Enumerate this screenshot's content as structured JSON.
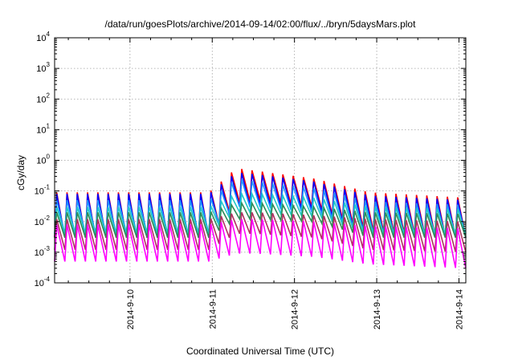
{
  "chart_data": {
    "type": "line",
    "title": "/data/run/goesPlots/archive/2014-09-14/02:00/flux/../bryn/5daysMars.plot",
    "xlabel": "Coordinated Universal Time (UTC)",
    "ylabel": "cGy/day",
    "y_scale": "log",
    "ylim": [
      0.0001,
      10000
    ],
    "y_ticks": [
      {
        "value": 0.0001,
        "base": "10",
        "exp": "-4"
      },
      {
        "value": 0.001,
        "base": "10",
        "exp": "-3"
      },
      {
        "value": 0.01,
        "base": "10",
        "exp": "-2"
      },
      {
        "value": 0.1,
        "base": "10",
        "exp": "-1"
      },
      {
        "value": 1,
        "base": "10",
        "exp": "0"
      },
      {
        "value": 10,
        "base": "10",
        "exp": "1"
      },
      {
        "value": 100,
        "base": "10",
        "exp": "2"
      },
      {
        "value": 1000,
        "base": "10",
        "exp": "3"
      },
      {
        "value": 10000,
        "base": "10",
        "exp": "4"
      }
    ],
    "xlim": [
      "2014-09-09 02:00",
      "2014-09-14 02:00"
    ],
    "x_ticks": [
      "2014-9-10",
      "2014-9-11",
      "2014-9-12",
      "2014-9-13",
      "2014-9-14"
    ],
    "grid": true,
    "legend": "none",
    "sawtooth_period_hours": 3,
    "sawtooth_peak_offset_hours": 0.6,
    "series": [
      {
        "color": "#ff0000",
        "points": [
          [
            "2014-09-09 02:00",
            0.09,
            0.003
          ],
          [
            "2014-09-10 23:00",
            0.09,
            0.003
          ],
          [
            "2014-09-11 07:00",
            0.55,
            0.04
          ],
          [
            "2014-09-11 13:00",
            0.45,
            0.05
          ],
          [
            "2014-09-12 06:00",
            0.25,
            0.03
          ],
          [
            "2014-09-12 22:00",
            0.09,
            0.005
          ],
          [
            "2014-09-14 02:00",
            0.06,
            0.003
          ]
        ]
      },
      {
        "color": "#0000ff",
        "points": [
          [
            "2014-09-09 02:00",
            0.08,
            0.003
          ],
          [
            "2014-09-10 23:00",
            0.08,
            0.003
          ],
          [
            "2014-09-11 07:00",
            0.4,
            0.03
          ],
          [
            "2014-09-11 13:00",
            0.35,
            0.035
          ],
          [
            "2014-09-12 06:00",
            0.2,
            0.025
          ],
          [
            "2014-09-12 22:00",
            0.07,
            0.004
          ],
          [
            "2014-09-14 02:00",
            0.05,
            0.003
          ]
        ]
      },
      {
        "color": "#1e90ff",
        "points": [
          [
            "2014-09-09 02:00",
            0.05,
            0.004
          ],
          [
            "2014-09-10 23:00",
            0.05,
            0.004
          ],
          [
            "2014-09-11 07:00",
            0.25,
            0.03
          ],
          [
            "2014-09-11 13:00",
            0.2,
            0.03
          ],
          [
            "2014-09-12 06:00",
            0.12,
            0.02
          ],
          [
            "2014-09-12 22:00",
            0.045,
            0.004
          ],
          [
            "2014-09-14 02:00",
            0.035,
            0.003
          ]
        ]
      },
      {
        "color": "#20c8c8",
        "points": [
          [
            "2014-09-09 02:00",
            0.03,
            0.004
          ],
          [
            "2014-09-10 23:00",
            0.03,
            0.004
          ],
          [
            "2014-09-11 07:00",
            0.08,
            0.02
          ],
          [
            "2014-09-11 13:00",
            0.08,
            0.02
          ],
          [
            "2014-09-12 06:00",
            0.06,
            0.015
          ],
          [
            "2014-09-12 22:00",
            0.03,
            0.004
          ],
          [
            "2014-09-14 02:00",
            0.025,
            0.004
          ]
        ]
      },
      {
        "color": "#2e8b57",
        "points": [
          [
            "2014-09-09 02:00",
            0.02,
            0.003
          ],
          [
            "2014-09-10 23:00",
            0.02,
            0.003
          ],
          [
            "2014-09-11 07:00",
            0.04,
            0.012
          ],
          [
            "2014-09-11 13:00",
            0.04,
            0.012
          ],
          [
            "2014-09-12 06:00",
            0.03,
            0.01
          ],
          [
            "2014-09-12 22:00",
            0.02,
            0.003
          ],
          [
            "2014-09-14 02:00",
            0.018,
            0.003
          ]
        ]
      },
      {
        "color": "#b03060",
        "points": [
          [
            "2014-09-09 02:00",
            0.012,
            0.0012
          ],
          [
            "2014-09-10 23:00",
            0.012,
            0.0012
          ],
          [
            "2014-09-11 07:00",
            0.02,
            0.004
          ],
          [
            "2014-09-11 13:00",
            0.02,
            0.004
          ],
          [
            "2014-09-12 06:00",
            0.016,
            0.003
          ],
          [
            "2014-09-12 22:00",
            0.012,
            0.0012
          ],
          [
            "2014-09-14 02:00",
            0.01,
            0.001
          ]
        ]
      },
      {
        "color": "#ff00ff",
        "points": [
          [
            "2014-09-09 02:00",
            0.008,
            0.0005
          ],
          [
            "2014-09-10 23:00",
            0.008,
            0.0005
          ],
          [
            "2014-09-11 07:00",
            0.012,
            0.0009
          ],
          [
            "2014-09-11 13:00",
            0.012,
            0.0009
          ],
          [
            "2014-09-12 06:00",
            0.01,
            0.0007
          ],
          [
            "2014-09-12 22:00",
            0.007,
            0.0004
          ],
          [
            "2014-09-14 02:00",
            0.006,
            0.0003
          ]
        ]
      }
    ]
  }
}
